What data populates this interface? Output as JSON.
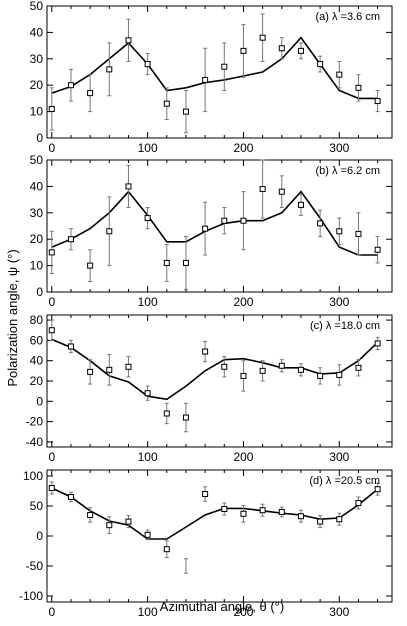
{
  "figure": {
    "xlabel": "Azimuthal angle, θ (°)",
    "ylabel": "Polarization angle, ψ (°)"
  },
  "chart_data": [
    {
      "type": "scatter",
      "panel_label": "(a) λ =3.6 cm",
      "xlim": [
        -5,
        355
      ],
      "ylim": [
        0,
        50
      ],
      "xticks": [
        0,
        100,
        200,
        300
      ],
      "yticks": [
        0,
        10,
        20,
        30,
        40,
        50
      ],
      "points": [
        {
          "x": 0,
          "y": 11,
          "err": 8
        },
        {
          "x": 20,
          "y": 20,
          "err": 6
        },
        {
          "x": 40,
          "y": 17,
          "err": 7
        },
        {
          "x": 60,
          "y": 26,
          "err": 10
        },
        {
          "x": 80,
          "y": 37,
          "err": 8
        },
        {
          "x": 100,
          "y": 28,
          "err": 4
        },
        {
          "x": 120,
          "y": 13,
          "err": 6
        },
        {
          "x": 140,
          "y": 10,
          "err": 8
        },
        {
          "x": 160,
          "y": 22,
          "err": 12
        },
        {
          "x": 180,
          "y": 27,
          "err": 9
        },
        {
          "x": 200,
          "y": 33,
          "err": 10
        },
        {
          "x": 220,
          "y": 38,
          "err": 9
        },
        {
          "x": 240,
          "y": 34,
          "err": 4
        },
        {
          "x": 260,
          "y": 33,
          "err": 3
        },
        {
          "x": 280,
          "y": 28,
          "err": 3
        },
        {
          "x": 300,
          "y": 24,
          "err": 5
        },
        {
          "x": 320,
          "y": 19,
          "err": 5
        },
        {
          "x": 340,
          "y": 14,
          "err": 4
        }
      ],
      "model": {
        "x": [
          0,
          20,
          40,
          60,
          80,
          100,
          120,
          140,
          160,
          180,
          200,
          220,
          240,
          260,
          280,
          300,
          320,
          340
        ],
        "y": [
          17,
          19.5,
          24,
          30,
          36,
          28,
          18,
          19,
          21,
          22,
          23.5,
          25,
          30,
          38,
          28,
          18,
          15,
          15
        ]
      }
    },
    {
      "type": "scatter",
      "panel_label": "(b) λ =6.2 cm",
      "xlim": [
        -5,
        355
      ],
      "ylim": [
        0,
        50
      ],
      "xticks": [
        0,
        100,
        200,
        300
      ],
      "yticks": [
        0,
        10,
        20,
        30,
        40,
        50
      ],
      "points": [
        {
          "x": 0,
          "y": 15,
          "err": 8
        },
        {
          "x": 20,
          "y": 20,
          "err": 4
        },
        {
          "x": 40,
          "y": 10,
          "err": 6
        },
        {
          "x": 60,
          "y": 23,
          "err": 13
        },
        {
          "x": 80,
          "y": 40,
          "err": 8
        },
        {
          "x": 100,
          "y": 28,
          "err": 4
        },
        {
          "x": 120,
          "y": 11,
          "err": 7
        },
        {
          "x": 140,
          "y": 11,
          "err": 10
        },
        {
          "x": 160,
          "y": 24,
          "err": 10
        },
        {
          "x": 180,
          "y": 27,
          "err": 5
        },
        {
          "x": 200,
          "y": 27,
          "err": 11
        },
        {
          "x": 220,
          "y": 39,
          "err": 11
        },
        {
          "x": 240,
          "y": 38,
          "err": 6
        },
        {
          "x": 260,
          "y": 33,
          "err": 4
        },
        {
          "x": 280,
          "y": 26,
          "err": 5
        },
        {
          "x": 300,
          "y": 23,
          "err": 5
        },
        {
          "x": 320,
          "y": 22,
          "err": 8
        },
        {
          "x": 340,
          "y": 16,
          "err": 5
        }
      ],
      "model": {
        "x": [
          0,
          20,
          40,
          60,
          80,
          100,
          120,
          140,
          160,
          180,
          200,
          220,
          240,
          260,
          280,
          300,
          320,
          340
        ],
        "y": [
          17,
          20,
          24,
          30,
          38,
          29,
          19,
          19,
          23,
          26,
          27,
          27,
          30,
          38,
          28,
          17,
          14,
          14
        ]
      }
    },
    {
      "type": "scatter",
      "panel_label": "(c) λ =18.0 cm",
      "xlim": [
        -5,
        355
      ],
      "ylim": [
        -45,
        85
      ],
      "xticks": [
        0,
        100,
        200,
        300
      ],
      "yticks": [
        -40,
        -20,
        0,
        20,
        40,
        60,
        80
      ],
      "points": [
        {
          "x": 0,
          "y": 70,
          "err": 10
        },
        {
          "x": 20,
          "y": 54,
          "err": 6
        },
        {
          "x": 40,
          "y": 29,
          "err": 12
        },
        {
          "x": 60,
          "y": 31,
          "err": 15
        },
        {
          "x": 80,
          "y": 34,
          "err": 10
        },
        {
          "x": 100,
          "y": 8,
          "err": 7
        },
        {
          "x": 120,
          "y": -12,
          "err": 10
        },
        {
          "x": 140,
          "y": -16,
          "err": 14
        },
        {
          "x": 160,
          "y": 49,
          "err": 10
        },
        {
          "x": 180,
          "y": 34,
          "err": 10
        },
        {
          "x": 200,
          "y": 25,
          "err": 15
        },
        {
          "x": 220,
          "y": 30,
          "err": 10
        },
        {
          "x": 240,
          "y": 35,
          "err": 6
        },
        {
          "x": 260,
          "y": 31,
          "err": 6
        },
        {
          "x": 280,
          "y": 25,
          "err": 8
        },
        {
          "x": 300,
          "y": 26,
          "err": 10
        },
        {
          "x": 320,
          "y": 33,
          "err": 8
        },
        {
          "x": 340,
          "y": 57,
          "err": 6
        }
      ],
      "model": {
        "x": [
          0,
          20,
          40,
          60,
          80,
          100,
          120,
          140,
          160,
          180,
          200,
          220,
          240,
          260,
          280,
          300,
          320,
          340
        ],
        "y": [
          61,
          53,
          40,
          25,
          19,
          5,
          2,
          15,
          30,
          41,
          42,
          38,
          33,
          33,
          27,
          28,
          40,
          58
        ]
      }
    },
    {
      "type": "scatter",
      "panel_label": "(d) λ =20.5 cm",
      "xlim": [
        -5,
        355
      ],
      "ylim": [
        -110,
        110
      ],
      "xticks": [
        0,
        100,
        200,
        300
      ],
      "yticks": [
        -100,
        -50,
        0,
        50,
        100
      ],
      "points": [
        {
          "x": 0,
          "y": 80,
          "err": 10
        },
        {
          "x": 20,
          "y": 65,
          "err": 8
        },
        {
          "x": 40,
          "y": 35,
          "err": 12
        },
        {
          "x": 60,
          "y": 18,
          "err": 14
        },
        {
          "x": 80,
          "y": 24,
          "err": 10
        },
        {
          "x": 100,
          "y": 2,
          "err": 8
        },
        {
          "x": 120,
          "y": -22,
          "err": 14
        },
        {
          "x": 160,
          "y": 70,
          "err": 12
        },
        {
          "x": 180,
          "y": 45,
          "err": 10
        },
        {
          "x": 200,
          "y": 37,
          "err": 14
        },
        {
          "x": 220,
          "y": 43,
          "err": 10
        },
        {
          "x": 240,
          "y": 40,
          "err": 8
        },
        {
          "x": 260,
          "y": 33,
          "err": 10
        },
        {
          "x": 280,
          "y": 24,
          "err": 10
        },
        {
          "x": 300,
          "y": 28,
          "err": 10
        },
        {
          "x": 320,
          "y": 55,
          "err": 10
        },
        {
          "x": 340,
          "y": 78,
          "err": 10
        }
      ],
      "errorbar_only": [
        {
          "x": 140,
          "y": -50,
          "err": 12
        }
      ],
      "model": {
        "x": [
          0,
          20,
          40,
          60,
          80,
          100,
          120,
          140,
          160,
          180,
          200,
          220,
          240,
          260,
          280,
          300,
          320,
          340
        ],
        "y": [
          80,
          65,
          42,
          25,
          18,
          -5,
          -5,
          15,
          35,
          46,
          46,
          42,
          38,
          35,
          28,
          30,
          52,
          78
        ]
      }
    }
  ]
}
